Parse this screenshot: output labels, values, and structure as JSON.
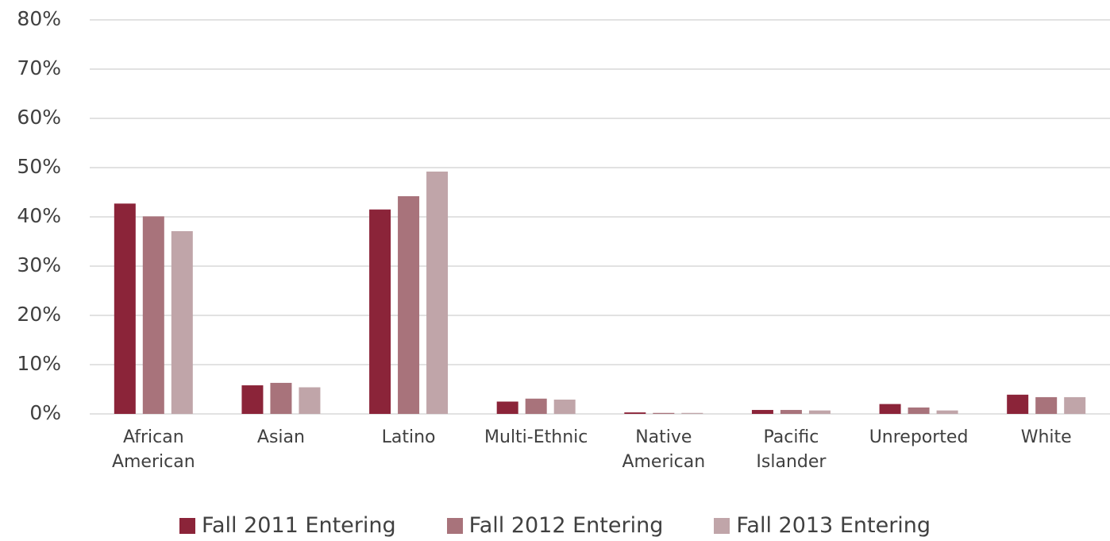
{
  "chart_data": {
    "type": "bar",
    "categories": [
      "African American",
      "Asian",
      "Latino",
      "Multi-Ethnic",
      "Native American",
      "Pacific Islander",
      "Unreported",
      "White"
    ],
    "series": [
      {
        "name": "Fall 2011 Entering",
        "color": "#8b2439",
        "values": [
          42.7,
          5.8,
          41.5,
          2.5,
          0.3,
          0.8,
          2.0,
          3.9
        ]
      },
      {
        "name": "Fall 2012 Entering",
        "color": "#a8737b",
        "values": [
          40.1,
          6.3,
          44.2,
          3.1,
          0.2,
          0.8,
          1.3,
          3.4
        ]
      },
      {
        "name": "Fall 2013 Entering",
        "color": "#c0a5a9",
        "values": [
          37.1,
          5.4,
          49.2,
          2.9,
          0.2,
          0.7,
          0.7,
          3.4
        ]
      }
    ],
    "ylim": [
      0,
      80
    ],
    "yticks": [
      {
        "value": 0,
        "label": "0%"
      },
      {
        "value": 10,
        "label": "10%"
      },
      {
        "value": 20,
        "label": "20%"
      },
      {
        "value": 30,
        "label": "30%"
      },
      {
        "value": 40,
        "label": "40%"
      },
      {
        "value": 50,
        "label": "50%"
      },
      {
        "value": 60,
        "label": "60%"
      },
      {
        "value": 70,
        "label": "70%"
      },
      {
        "value": 80,
        "label": "80%"
      }
    ],
    "grid": true,
    "legend": "bottom"
  }
}
